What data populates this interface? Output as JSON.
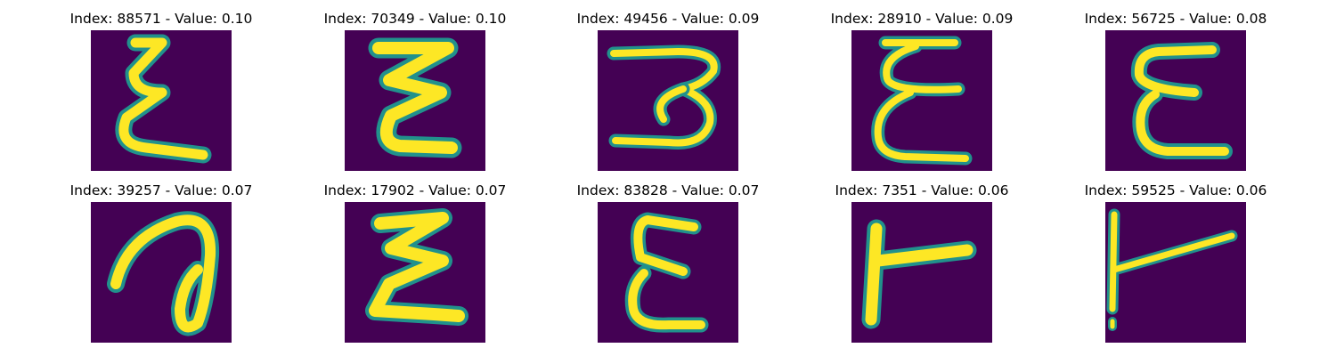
{
  "colors": {
    "background": "#440154",
    "stroke_edge": "#21918c",
    "stroke_core": "#fde725"
  },
  "panels": [
    {
      "title": "Index: 88571 - Value: 0.10",
      "glyph": "epsilon-tall"
    },
    {
      "title": "Index: 70349 - Value: 0.10",
      "glyph": "epsilon-tall-bold"
    },
    {
      "title": "Index: 49456 - Value: 0.09",
      "glyph": "three-rotated"
    },
    {
      "title": "Index: 28910 - Value: 0.09",
      "glyph": "epsilon-thin"
    },
    {
      "title": "Index: 56725 - Value: 0.08",
      "glyph": "epsilon-wide"
    },
    {
      "title": "Index: 39257 - Value: 0.07",
      "glyph": "loop-a"
    },
    {
      "title": "Index: 17902 - Value: 0.07",
      "glyph": "epsilon-zigzag"
    },
    {
      "title": "Index: 83828 - Value: 0.07",
      "glyph": "epsilon-plain"
    },
    {
      "title": "Index: 7351 - Value: 0.06",
      "glyph": "t-rotated"
    },
    {
      "title": "Index: 59525 - Value: 0.06",
      "glyph": "y-rotated"
    }
  ]
}
